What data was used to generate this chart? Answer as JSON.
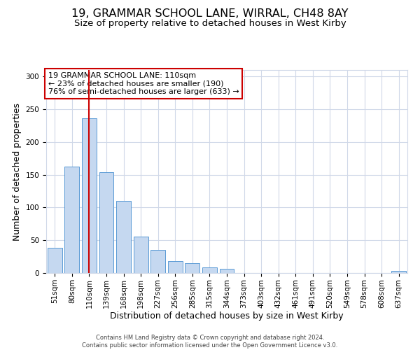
{
  "title": "19, GRAMMAR SCHOOL LANE, WIRRAL, CH48 8AY",
  "subtitle": "Size of property relative to detached houses in West Kirby",
  "xlabel": "Distribution of detached houses by size in West Kirby",
  "ylabel": "Number of detached properties",
  "footer_line1": "Contains HM Land Registry data © Crown copyright and database right 2024.",
  "footer_line2": "Contains public sector information licensed under the Open Government Licence v3.0.",
  "bar_labels": [
    "51sqm",
    "80sqm",
    "110sqm",
    "139sqm",
    "168sqm",
    "198sqm",
    "227sqm",
    "256sqm",
    "285sqm",
    "315sqm",
    "344sqm",
    "373sqm",
    "403sqm",
    "432sqm",
    "461sqm",
    "491sqm",
    "520sqm",
    "549sqm",
    "578sqm",
    "608sqm",
    "637sqm"
  ],
  "bar_values": [
    39,
    163,
    236,
    154,
    110,
    56,
    35,
    18,
    15,
    9,
    6,
    0,
    0,
    0,
    0,
    0,
    0,
    0,
    0,
    0,
    3
  ],
  "bar_color": "#c5d8f0",
  "bar_edge_color": "#5b9bd5",
  "property_label": "19 GRAMMAR SCHOOL LANE: 110sqm",
  "annotation_line1": "← 23% of detached houses are smaller (190)",
  "annotation_line2": "76% of semi-detached houses are larger (633) →",
  "vline_color": "#cc0000",
  "vline_x_index": 2,
  "annotation_box_edge_color": "#cc0000",
  "annotation_box_face_color": "#ffffff",
  "ylim": [
    0,
    310
  ],
  "yticks": [
    0,
    50,
    100,
    150,
    200,
    250,
    300
  ],
  "background_color": "#ffffff",
  "grid_color": "#d0d8e8",
  "title_fontsize": 11.5,
  "subtitle_fontsize": 9.5,
  "axis_label_fontsize": 9,
  "tick_fontsize": 7.5,
  "annotation_fontsize": 8,
  "footer_fontsize": 6
}
